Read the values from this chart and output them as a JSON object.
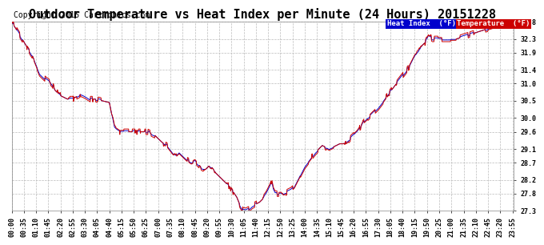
{
  "title": "Outdoor Temperature vs Heat Index per Minute (24 Hours) 20151228",
  "copyright": "Copyright 2015 Cartronics.com",
  "legend_heat_index": "Heat Index  (°F)",
  "legend_temperature": "Temperature  (°F)",
  "heat_index_color": "#0000cc",
  "temperature_color": "#cc0000",
  "ymin": 27.3,
  "ymax": 32.8,
  "yticks": [
    27.3,
    27.8,
    28.2,
    28.7,
    29.1,
    29.6,
    30.0,
    30.5,
    31.0,
    31.4,
    31.9,
    32.3,
    32.8
  ],
  "background_color": "#ffffff",
  "grid_color": "#bbbbbb",
  "title_fontsize": 11,
  "copyright_fontsize": 7,
  "axis_fontsize": 6,
  "tick_interval_minutes": 35
}
